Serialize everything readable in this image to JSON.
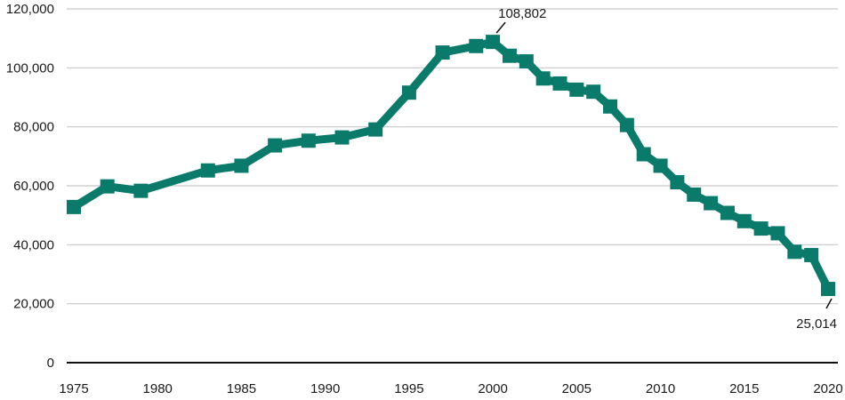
{
  "chart_data": {
    "type": "line",
    "title": "",
    "xlabel": "",
    "ylabel": "",
    "xlim": [
      1975,
      2020
    ],
    "ylim": [
      0,
      120000
    ],
    "grid": true,
    "legend": "none",
    "x_ticks": [
      1975,
      1980,
      1985,
      1990,
      1995,
      2000,
      2005,
      2010,
      2015,
      2020
    ],
    "y_ticks": [
      0,
      20000,
      40000,
      60000,
      80000,
      100000,
      120000
    ],
    "x_tick_labels": [
      "1975",
      "1980",
      "1985",
      "1990",
      "1995",
      "2000",
      "2005",
      "2010",
      "2015",
      "2020"
    ],
    "y_tick_labels": [
      "0",
      "20,000",
      "40,000",
      "60,000",
      "80,000",
      "100,000",
      "120,000"
    ],
    "series": [
      {
        "color": "#0a7a6a",
        "marker": "square",
        "x": [
          1975,
          1977,
          1979,
          1983,
          1985,
          1987,
          1989,
          1991,
          1993,
          1995,
          1997,
          1999,
          2000,
          2001,
          2002,
          2003,
          2004,
          2005,
          2006,
          2007,
          2008,
          2009,
          2010,
          2011,
          2012,
          2013,
          2014,
          2015,
          2016,
          2017,
          2018,
          2019,
          2020
        ],
        "y": [
          52800,
          59800,
          58300,
          65200,
          66800,
          73700,
          75300,
          76400,
          79100,
          91600,
          105200,
          107400,
          108802,
          104100,
          102200,
          96400,
          94700,
          92600,
          91900,
          86900,
          80600,
          70700,
          66800,
          61200,
          57000,
          54100,
          50800,
          48000,
          45500,
          43900,
          37600,
          36500,
          25014
        ]
      }
    ],
    "annotations": [
      {
        "text": "108,802",
        "x": 2000,
        "y": 108802
      },
      {
        "text": "25,014",
        "x": 2020,
        "y": 25014
      }
    ]
  },
  "colors": {
    "line": "#0a7a6a",
    "grid": "#c8c8c8",
    "axis": "#111111",
    "text": "#1a1a1a"
  }
}
